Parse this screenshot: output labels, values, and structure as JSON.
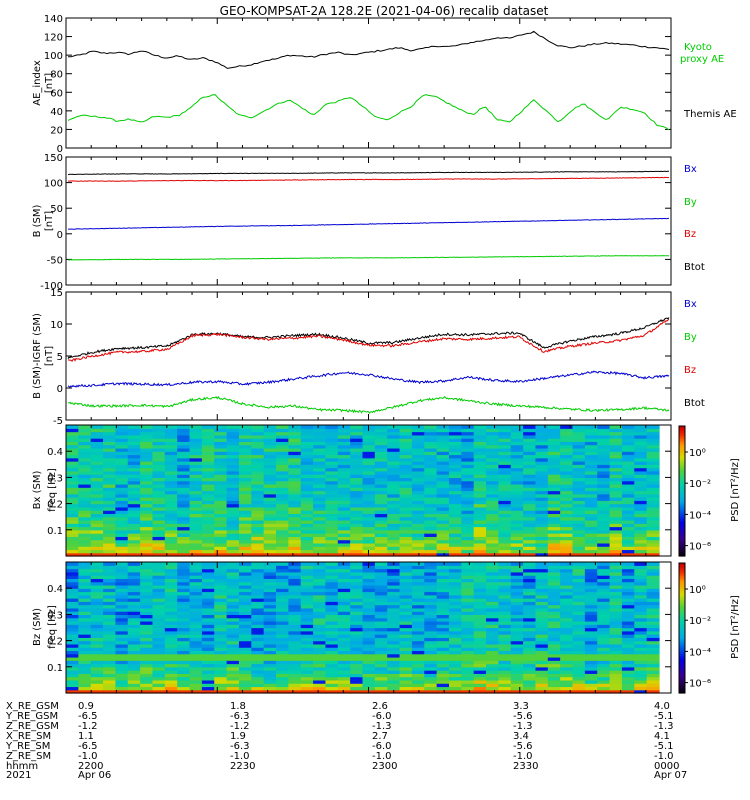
{
  "title": "GEO-KOMPSAT-2A 128.2E (2021-04-06) recalib dataset",
  "colors": {
    "black": "#000000",
    "red": "#e00000",
    "green": "#00cc00",
    "blue": "#0000d0"
  },
  "x_ticks": [
    "2200",
    "2230",
    "2300",
    "2330",
    "0000"
  ],
  "ephemeris": {
    "labels": [
      "X_RE_GSM",
      "Y_RE_GSM",
      "Z_RE_GSM",
      "X_RE_SM",
      "Y_RE_SM",
      "Z_RE_SM",
      "hhmm",
      "2021"
    ],
    "columns": [
      [
        "0.9",
        "-6.5",
        "-1.2",
        "1.1",
        "-6.5",
        "-1.0",
        "2200",
        "Apr 06"
      ],
      [
        "1.8",
        "-6.3",
        "-1.2",
        "1.9",
        "-6.3",
        "-1.0",
        "2230",
        ""
      ],
      [
        "2.6",
        "-6.0",
        "-1.3",
        "2.7",
        "-6.0",
        "-1.0",
        "2300",
        ""
      ],
      [
        "3.3",
        "-5.6",
        "-1.3",
        "3.4",
        "-5.6",
        "-1.0",
        "2330",
        ""
      ],
      [
        "4.0",
        "-5.1",
        "-1.3",
        "4.1",
        "-5.1",
        "-1.0",
        "0000",
        "Apr 07"
      ]
    ]
  },
  "chart_data": [
    {
      "type": "line",
      "ylabel": [
        "AE_index",
        "[nT]"
      ],
      "ylim": [
        0,
        140
      ],
      "yticks": [
        "0",
        "20",
        "40",
        "60",
        "80",
        "100",
        "120",
        "140"
      ],
      "legend": [
        "Kyoto",
        "proxy AE",
        "Themis AE"
      ],
      "x_range": [
        "2200",
        "0000"
      ],
      "series": [
        {
          "name": "Themis AE",
          "color": "black",
          "values": [
            98,
            100,
            104,
            102,
            103,
            101,
            105,
            100,
            97,
            99,
            95,
            97,
            93,
            86,
            88,
            90,
            94,
            96,
            100,
            99,
            98,
            101,
            103,
            100,
            102,
            104,
            106,
            108,
            105,
            107,
            110,
            109,
            111,
            114,
            116,
            119,
            118,
            122,
            125,
            117,
            110,
            108,
            110,
            112,
            113,
            112,
            111,
            109,
            108,
            106
          ]
        },
        {
          "name": "proxy AE",
          "color": "green",
          "values": [
            30,
            35,
            34,
            33,
            29,
            31,
            27,
            34,
            33,
            35,
            43,
            55,
            57,
            45,
            35,
            33,
            40,
            47,
            52,
            44,
            35,
            47,
            50,
            55,
            45,
            34,
            30,
            38,
            45,
            57,
            55,
            48,
            41,
            36,
            45,
            30,
            28,
            40,
            52,
            40,
            28,
            40,
            48,
            38,
            30,
            44,
            42,
            38,
            25,
            20
          ]
        }
      ]
    },
    {
      "type": "line",
      "ylabel": [
        "B (SM)",
        "[nT]"
      ],
      "ylim": [
        -100,
        150
      ],
      "yticks": [
        "-100",
        "-50",
        "0",
        "50",
        "100",
        "150"
      ],
      "legend": [
        "Bx",
        "By",
        "Bz",
        "Btot"
      ],
      "series": [
        {
          "name": "Btot",
          "color": "black",
          "values": [
            116,
            117,
            117,
            118,
            118,
            119,
            119,
            120,
            120,
            121,
            121,
            122
          ]
        },
        {
          "name": "Bz",
          "color": "red",
          "values": [
            103,
            103,
            104,
            104,
            105,
            106,
            106,
            107,
            107,
            108,
            109,
            110
          ]
        },
        {
          "name": "Bx",
          "color": "blue",
          "values": [
            9,
            11,
            13,
            15,
            16,
            18,
            20,
            22,
            24,
            26,
            28,
            30
          ]
        },
        {
          "name": "By",
          "color": "green",
          "values": [
            -51,
            -50,
            -50,
            -49,
            -48,
            -47,
            -47,
            -46,
            -45,
            -44,
            -43,
            -43
          ]
        }
      ]
    },
    {
      "type": "line",
      "ylabel": [
        "B (SM)-IGRF (SM)",
        "[nT]"
      ],
      "ylim": [
        -5,
        15
      ],
      "yticks": [
        "-5",
        "0",
        "5",
        "10",
        "15"
      ],
      "legend": [
        "Bx",
        "By",
        "Bz",
        "Btot"
      ],
      "series": [
        {
          "name": "Btot",
          "color": "black",
          "values": [
            4.7,
            5.6,
            6.2,
            6.3,
            6.6,
            8.4,
            8.5,
            8.0,
            7.9,
            8.2,
            8.4,
            7.8,
            7.0,
            7.1,
            7.8,
            8.4,
            8.3,
            8.5,
            8.6,
            6.3,
            7.3,
            8.0,
            8.5,
            9.4,
            11.0
          ]
        },
        {
          "name": "Bz",
          "color": "red",
          "values": [
            4.2,
            5.0,
            5.6,
            5.7,
            6.1,
            8.2,
            8.4,
            7.9,
            7.6,
            7.8,
            8.1,
            7.5,
            6.7,
            6.6,
            7.2,
            7.7,
            7.6,
            7.8,
            8.0,
            5.7,
            6.5,
            7.0,
            7.4,
            8.2,
            10.7
          ]
        },
        {
          "name": "Bx",
          "color": "blue",
          "values": [
            0.3,
            0.4,
            0.7,
            0.6,
            0.5,
            0.9,
            1.0,
            0.6,
            0.9,
            1.4,
            1.9,
            2.4,
            2.1,
            1.4,
            0.9,
            1.1,
            1.7,
            1.2,
            1.0,
            1.5,
            2.0,
            2.5,
            2.3,
            1.6,
            1.9
          ]
        },
        {
          "name": "By",
          "color": "green",
          "values": [
            -2.3,
            -2.8,
            -2.8,
            -2.7,
            -2.9,
            -1.8,
            -1.5,
            -2.5,
            -3.0,
            -2.8,
            -3.4,
            -3.5,
            -3.8,
            -3.0,
            -2.0,
            -1.5,
            -2.0,
            -2.5,
            -2.8,
            -3.0,
            -3.3,
            -3.5,
            -3.4,
            -3.1,
            -3.5
          ]
        }
      ]
    },
    {
      "type": "heatmap",
      "ylabel": [
        "Bx (SM)",
        "freq [Hz]"
      ],
      "ylim": [
        0,
        0.5
      ],
      "yticks": [
        "0.1",
        "0.2",
        "0.3",
        "0.4"
      ],
      "colorbar": {
        "label": "PSD [nT²/Hz]",
        "ticks": [
          "10⁰",
          "10⁻²",
          "10⁻⁴",
          "10⁻⁶"
        ]
      }
    },
    {
      "type": "heatmap",
      "ylabel": [
        "Bz (SM)",
        "freq [Hz]"
      ],
      "ylim": [
        0,
        0.5
      ],
      "yticks": [
        "0.1",
        "0.2",
        "0.3",
        "0.4"
      ],
      "colorbar": {
        "label": "PSD [nT²/Hz]",
        "ticks": [
          "10⁰",
          "10⁻²",
          "10⁻⁴",
          "10⁻⁶"
        ]
      }
    }
  ]
}
